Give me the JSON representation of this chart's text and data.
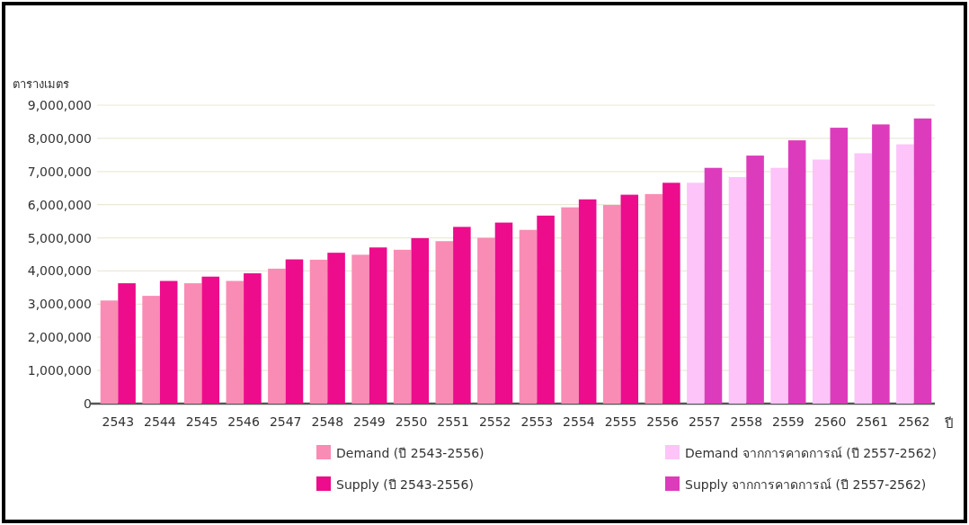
{
  "chart_data": {
    "type": "bar",
    "ylabel": "ตารางเมตร",
    "xlabel": "ปี",
    "categories": [
      "2543",
      "2544",
      "2545",
      "2546",
      "2547",
      "2548",
      "2549",
      "2550",
      "2551",
      "2552",
      "2553",
      "2554",
      "2555",
      "2556",
      "2557",
      "2558",
      "2559",
      "2560",
      "2561",
      "2562"
    ],
    "series": [
      {
        "name": "Demand (ปี 2543-2556)",
        "color": "#f98cb4",
        "values": [
          3110000,
          3250000,
          3630000,
          3700000,
          4070000,
          4340000,
          4490000,
          4640000,
          4900000,
          5000000,
          5240000,
          5920000,
          5990000,
          6320000,
          null,
          null,
          null,
          null,
          null,
          null
        ]
      },
      {
        "name": "Supply  (ปี 2543-2556)",
        "color": "#ec0c8c",
        "values": [
          3630000,
          3700000,
          3830000,
          3930000,
          4350000,
          4550000,
          4710000,
          4990000,
          5330000,
          5460000,
          5670000,
          6160000,
          6300000,
          6660000,
          null,
          null,
          null,
          null,
          null,
          null
        ]
      },
      {
        "name": "Demand จากการคาดการณ์ (ปี 2557-2562)",
        "color": "#fcc4f8",
        "values": [
          null,
          null,
          null,
          null,
          null,
          null,
          null,
          null,
          null,
          null,
          null,
          null,
          null,
          null,
          6660000,
          6830000,
          7110000,
          7360000,
          7550000,
          7820000
        ]
      },
      {
        "name": "Supply   จากการคาดการณ์ (ปี 2557-2562)",
        "color": "#dc3cbc",
        "values": [
          null,
          null,
          null,
          null,
          null,
          null,
          null,
          null,
          null,
          null,
          null,
          null,
          null,
          null,
          7110000,
          7480000,
          7940000,
          8320000,
          8420000,
          8600000
        ]
      }
    ],
    "ylim": [
      0,
      9000000
    ],
    "yticks": [
      {
        "value": 0,
        "label": "0"
      },
      {
        "value": 1000000,
        "label": "1,000,000"
      },
      {
        "value": 2000000,
        "label": "2,000,000"
      },
      {
        "value": 3000000,
        "label": "3,000,000"
      },
      {
        "value": 4000000,
        "label": "4,000,000"
      },
      {
        "value": 5000000,
        "label": "5,000,000"
      },
      {
        "value": 6000000,
        "label": "6,000,000"
      },
      {
        "value": 7000000,
        "label": "7,000,000"
      },
      {
        "value": 8000000,
        "label": "8,000,000"
      },
      {
        "value": 9000000,
        "label": "9,000,000"
      }
    ],
    "grid": "y",
    "legend": "bottom"
  }
}
